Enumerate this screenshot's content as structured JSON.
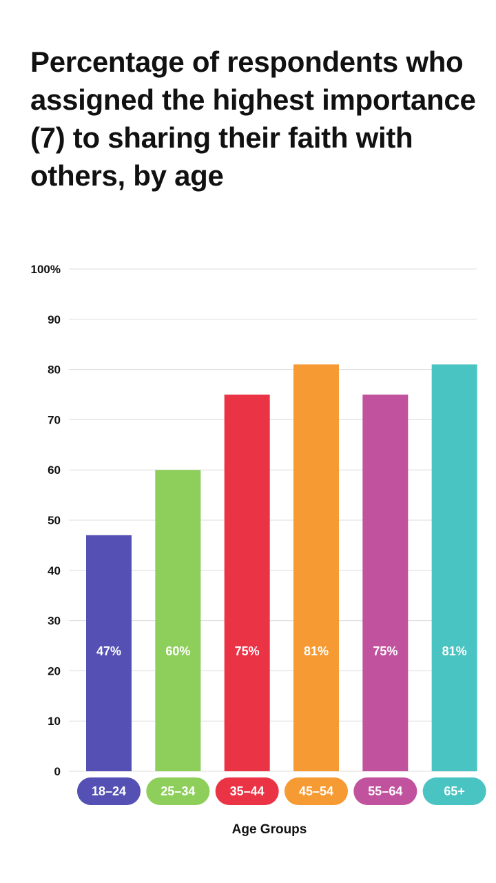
{
  "chart_data": {
    "type": "bar",
    "title": "Percentage of respondents who assigned the highest importance (7) to sharing their faith with others, by age",
    "xlabel": "Age Groups",
    "ylabel": "",
    "categories": [
      "18–24",
      "25–34",
      "35–44",
      "45–54",
      "55–64",
      "65+"
    ],
    "values": [
      47,
      60,
      75,
      81,
      75,
      81
    ],
    "value_labels": [
      "47%",
      "60%",
      "75%",
      "81%",
      "75%",
      "81%"
    ],
    "colors": [
      "#5450b4",
      "#8ecf5b",
      "#eb3346",
      "#f69a33",
      "#c0529e",
      "#4ac4c2"
    ],
    "ylim": [
      0,
      100
    ],
    "yticks": [
      0,
      10,
      20,
      30,
      40,
      50,
      60,
      70,
      80,
      90,
      100
    ],
    "ytick_labels": [
      "0",
      "10",
      "20",
      "30",
      "40",
      "50",
      "60",
      "70",
      "80",
      "90",
      "100%"
    ],
    "grid": true,
    "gridline_color": "#dcdcdc"
  }
}
